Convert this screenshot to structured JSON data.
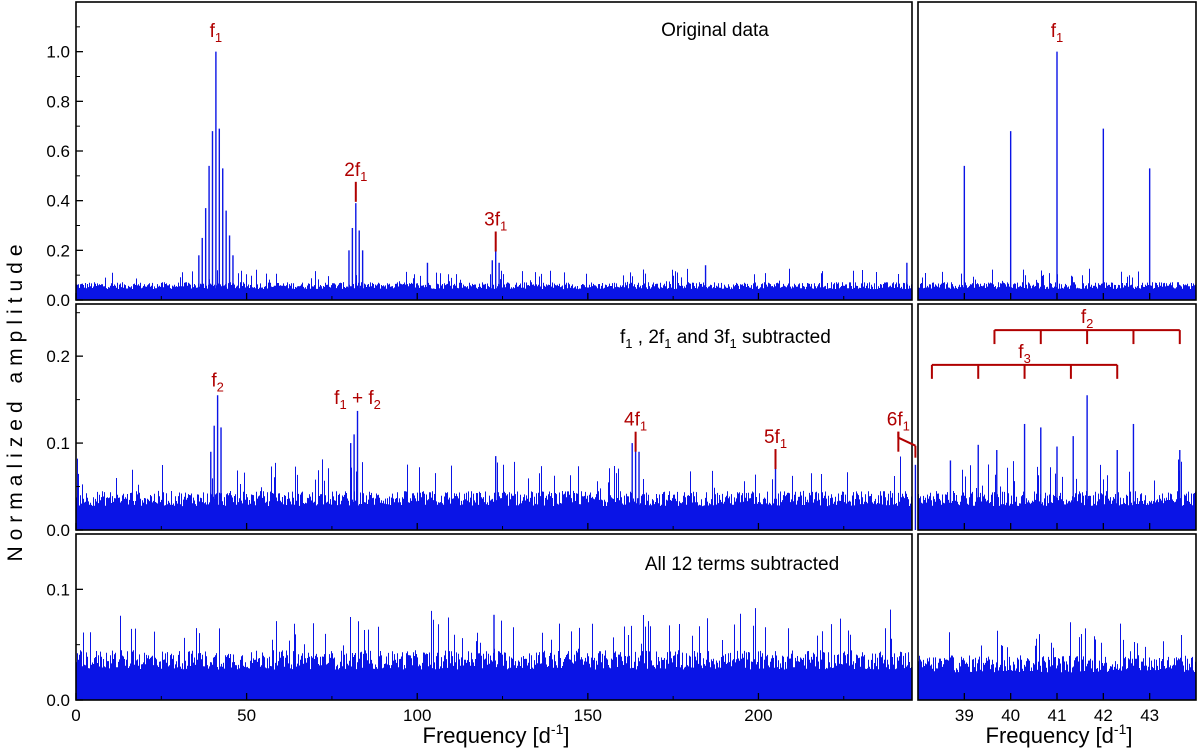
{
  "colors": {
    "series": "#0a14e6",
    "annotation": "#b00000",
    "axis": "#000000"
  },
  "ylabel": "Normalized amplitude",
  "xlabel_left": "Frequency [d^-1]",
  "xlabel_right": "Frequency [d^-1]",
  "chart_data": [
    {
      "type": "line",
      "title": "Original data",
      "panel": "left-top",
      "xlim": [
        0,
        245
      ],
      "ylim": [
        0,
        1.2
      ],
      "xticks": [
        0,
        50,
        100,
        150,
        200
      ],
      "yticks": [
        "0.0",
        "0.2",
        "0.4",
        "0.6",
        "0.8",
        "1.0"
      ],
      "noise_level": 0.08,
      "peaks": [
        {
          "x": 41.0,
          "y": 1.0
        },
        {
          "x": 40.0,
          "y": 0.68
        },
        {
          "x": 42.0,
          "y": 0.69
        },
        {
          "x": 39.0,
          "y": 0.54
        },
        {
          "x": 43.0,
          "y": 0.53
        },
        {
          "x": 38.0,
          "y": 0.37
        },
        {
          "x": 44.0,
          "y": 0.36
        },
        {
          "x": 37.0,
          "y": 0.25
        },
        {
          "x": 45.0,
          "y": 0.26
        },
        {
          "x": 36.0,
          "y": 0.18
        },
        {
          "x": 46.0,
          "y": 0.18
        },
        {
          "x": 82.0,
          "y": 0.39
        },
        {
          "x": 81.0,
          "y": 0.29
        },
        {
          "x": 83.0,
          "y": 0.28
        },
        {
          "x": 80.0,
          "y": 0.2
        },
        {
          "x": 84.0,
          "y": 0.2
        },
        {
          "x": 123.0,
          "y": 0.21
        },
        {
          "x": 122.0,
          "y": 0.16
        },
        {
          "x": 124.0,
          "y": 0.15
        },
        {
          "x": 103.0,
          "y": 0.15
        },
        {
          "x": 184.5,
          "y": 0.14
        },
        {
          "x": 243.5,
          "y": 0.15
        }
      ],
      "annotations": [
        {
          "base": "f",
          "sub": "1",
          "pre": "",
          "x": 41.0,
          "y": 1.06,
          "tick": false
        },
        {
          "base": "f",
          "sub": "1",
          "pre": "2",
          "x": 82.0,
          "y": 0.5,
          "tick": true
        },
        {
          "base": "f",
          "sub": "1",
          "pre": "3",
          "x": 123.0,
          "y": 0.3,
          "tick": true
        }
      ]
    },
    {
      "type": "line",
      "title": "f1 , 2f1 and 3f1 subtracted",
      "panel": "left-middle",
      "xlim": [
        0,
        245
      ],
      "ylim": [
        0,
        0.26
      ],
      "xticks": [
        0,
        50,
        100,
        150,
        200
      ],
      "yticks": [
        "0.0",
        "0.1",
        "0.2"
      ],
      "noise_level": 0.05,
      "peaks": [
        {
          "x": 41.5,
          "y": 0.155
        },
        {
          "x": 40.5,
          "y": 0.12
        },
        {
          "x": 42.5,
          "y": 0.118
        },
        {
          "x": 39.5,
          "y": 0.09
        },
        {
          "x": 82.5,
          "y": 0.137
        },
        {
          "x": 81.5,
          "y": 0.11
        },
        {
          "x": 80.5,
          "y": 0.1
        },
        {
          "x": 164.0,
          "y": 0.106
        },
        {
          "x": 163.0,
          "y": 0.1
        },
        {
          "x": 165.0,
          "y": 0.09
        },
        {
          "x": 205.0,
          "y": 0.078
        },
        {
          "x": 246.0,
          "y": 0.075
        },
        {
          "x": 123.0,
          "y": 0.085
        }
      ],
      "annotations": [
        {
          "base": "f",
          "sub": "2",
          "pre": "",
          "x": 41.5,
          "y": 0.165,
          "tick": false
        },
        {
          "base": "f",
          "sub": "1",
          "pre": "",
          "x": 82.5,
          "y": 0.145,
          "tick": false,
          "suffix": " + f",
          "sub2": "2"
        },
        {
          "base": "f",
          "sub": "1",
          "pre": "4",
          "x": 164.0,
          "y": 0.12,
          "tick": true
        },
        {
          "base": "f",
          "sub": "1",
          "pre": "5",
          "x": 205.0,
          "y": 0.1,
          "tick": true
        },
        {
          "base": "f",
          "sub": "1",
          "pre": "6",
          "x": 241.0,
          "y": 0.12,
          "tick": true
        }
      ]
    },
    {
      "type": "line",
      "title": "All 12 terms subtracted",
      "panel": "left-bottom",
      "xlim": [
        0,
        245
      ],
      "ylim": [
        0,
        0.15
      ],
      "xticks": [
        0,
        50,
        100,
        150,
        200
      ],
      "yticks": [
        "0.0",
        "0.1"
      ],
      "noise_level": 0.05,
      "peaks": [
        {
          "x": 122.5,
          "y": 0.077
        }
      ]
    },
    {
      "type": "line",
      "panel": "right-top",
      "xlim": [
        38.0,
        44.0
      ],
      "ylim": [
        0,
        1.2
      ],
      "peaks": [
        {
          "x": 41.0,
          "y": 1.0
        },
        {
          "x": 40.0,
          "y": 0.68
        },
        {
          "x": 42.0,
          "y": 0.69
        },
        {
          "x": 39.0,
          "y": 0.54
        },
        {
          "x": 43.0,
          "y": 0.53
        }
      ],
      "annotations": [
        {
          "base": "f",
          "sub": "1",
          "pre": "",
          "x": 41.0,
          "y": 1.06,
          "tick": false
        }
      ]
    },
    {
      "type": "line",
      "panel": "right-middle",
      "xlim": [
        38.0,
        44.0
      ],
      "ylim": [
        0,
        0.26
      ],
      "peaks": [
        {
          "x": 38.7,
          "y": 0.08
        },
        {
          "x": 39.3,
          "y": 0.098
        },
        {
          "x": 39.7,
          "y": 0.092
        },
        {
          "x": 40.3,
          "y": 0.122
        },
        {
          "x": 40.65,
          "y": 0.118
        },
        {
          "x": 41.0,
          "y": 0.096
        },
        {
          "x": 41.35,
          "y": 0.108
        },
        {
          "x": 41.65,
          "y": 0.155
        },
        {
          "x": 42.3,
          "y": 0.092
        },
        {
          "x": 42.65,
          "y": 0.122
        },
        {
          "x": 43.65,
          "y": 0.092
        }
      ],
      "combs": [
        {
          "label_base": "f",
          "label_sub": "2",
          "y": 0.23,
          "ticks": [
            39.65,
            40.65,
            41.65,
            42.65,
            43.65
          ],
          "label_x": 41.65
        },
        {
          "label_base": "f",
          "label_sub": "3",
          "y": 0.19,
          "ticks": [
            38.3,
            39.3,
            40.3,
            41.3,
            42.3
          ],
          "label_x": 40.3
        }
      ]
    },
    {
      "type": "line",
      "panel": "right-bottom",
      "xlim": [
        38.0,
        44.0
      ],
      "ylim": [
        0,
        0.15
      ],
      "xticks": [
        39,
        40,
        41,
        42,
        43
      ],
      "noise_level": 0.045,
      "peaks": []
    }
  ]
}
